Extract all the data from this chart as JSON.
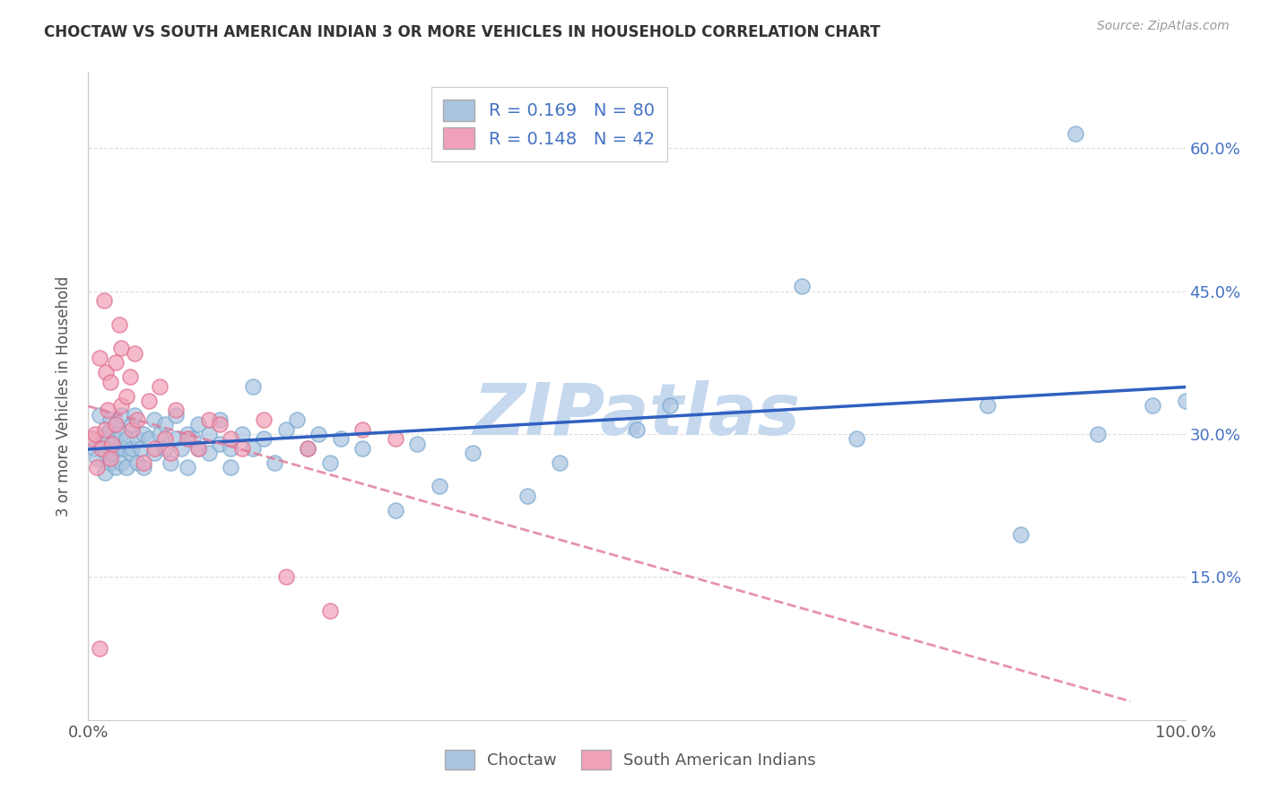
{
  "title": "CHOCTAW VS SOUTH AMERICAN INDIAN 3 OR MORE VEHICLES IN HOUSEHOLD CORRELATION CHART",
  "source": "Source: ZipAtlas.com",
  "ylabel": "3 or more Vehicles in Household",
  "xlim": [
    0.0,
    1.0
  ],
  "ylim": [
    0.0,
    0.68
  ],
  "ytick_positions": [
    0.15,
    0.3,
    0.45,
    0.6
  ],
  "ytick_labels": [
    "15.0%",
    "30.0%",
    "45.0%",
    "60.0%"
  ],
  "choctaw_R": 0.169,
  "choctaw_N": 80,
  "sa_indian_R": 0.148,
  "sa_indian_N": 42,
  "choctaw_color": "#aac4e0",
  "choctaw_edge_color": "#7aaad0",
  "sa_indian_color": "#f0a0b8",
  "sa_indian_edge_color": "#e07090",
  "choctaw_line_color": "#3060c0",
  "sa_indian_line_color": "#e07898",
  "watermark_color": "#c5d8ee",
  "background_color": "#ffffff",
  "legend_box_color": "#aac4e0",
  "legend_box_color2": "#f0a0b8",
  "choctaw_x": [
    0.005,
    0.008,
    0.01,
    0.012,
    0.015,
    0.015,
    0.016,
    0.018,
    0.02,
    0.02,
    0.02,
    0.022,
    0.025,
    0.025,
    0.025,
    0.028,
    0.03,
    0.03,
    0.03,
    0.032,
    0.035,
    0.035,
    0.038,
    0.04,
    0.04,
    0.042,
    0.045,
    0.045,
    0.048,
    0.05,
    0.05,
    0.055,
    0.06,
    0.06,
    0.065,
    0.07,
    0.07,
    0.075,
    0.08,
    0.08,
    0.085,
    0.09,
    0.09,
    0.095,
    0.1,
    0.1,
    0.11,
    0.11,
    0.12,
    0.12,
    0.13,
    0.13,
    0.14,
    0.15,
    0.15,
    0.16,
    0.17,
    0.18,
    0.19,
    0.2,
    0.21,
    0.22,
    0.23,
    0.25,
    0.28,
    0.3,
    0.32,
    0.35,
    0.4,
    0.43,
    0.5,
    0.53,
    0.65,
    0.7,
    0.82,
    0.85,
    0.9,
    0.92,
    0.97,
    1.0
  ],
  "choctaw_y": [
    0.285,
    0.275,
    0.32,
    0.29,
    0.26,
    0.3,
    0.28,
    0.295,
    0.305,
    0.27,
    0.315,
    0.28,
    0.295,
    0.265,
    0.31,
    0.285,
    0.27,
    0.3,
    0.32,
    0.285,
    0.295,
    0.265,
    0.28,
    0.31,
    0.285,
    0.32,
    0.27,
    0.295,
    0.285,
    0.3,
    0.265,
    0.295,
    0.28,
    0.315,
    0.3,
    0.285,
    0.31,
    0.27,
    0.295,
    0.32,
    0.285,
    0.3,
    0.265,
    0.295,
    0.31,
    0.285,
    0.28,
    0.3,
    0.315,
    0.29,
    0.285,
    0.265,
    0.3,
    0.35,
    0.285,
    0.295,
    0.27,
    0.305,
    0.315,
    0.285,
    0.3,
    0.27,
    0.295,
    0.285,
    0.22,
    0.29,
    0.245,
    0.28,
    0.235,
    0.27,
    0.305,
    0.33,
    0.455,
    0.295,
    0.33,
    0.195,
    0.615,
    0.3,
    0.33,
    0.335
  ],
  "sa_x": [
    0.004,
    0.006,
    0.008,
    0.01,
    0.01,
    0.012,
    0.014,
    0.015,
    0.016,
    0.018,
    0.02,
    0.02,
    0.022,
    0.025,
    0.025,
    0.028,
    0.03,
    0.03,
    0.035,
    0.038,
    0.04,
    0.042,
    0.045,
    0.05,
    0.055,
    0.06,
    0.065,
    0.07,
    0.075,
    0.08,
    0.09,
    0.1,
    0.11,
    0.12,
    0.13,
    0.14,
    0.16,
    0.18,
    0.2,
    0.22,
    0.25,
    0.28
  ],
  "sa_y": [
    0.295,
    0.3,
    0.265,
    0.38,
    0.075,
    0.285,
    0.44,
    0.305,
    0.365,
    0.325,
    0.355,
    0.275,
    0.29,
    0.375,
    0.31,
    0.415,
    0.39,
    0.33,
    0.34,
    0.36,
    0.305,
    0.385,
    0.315,
    0.27,
    0.335,
    0.285,
    0.35,
    0.295,
    0.28,
    0.325,
    0.295,
    0.285,
    0.315,
    0.31,
    0.295,
    0.285,
    0.315,
    0.15,
    0.285,
    0.115,
    0.305,
    0.295
  ]
}
